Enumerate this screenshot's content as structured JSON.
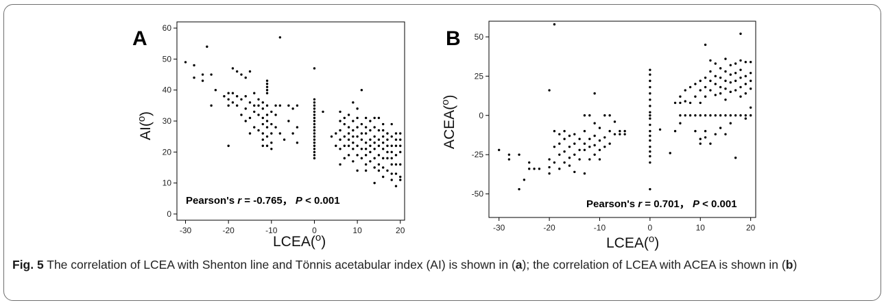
{
  "caption": {
    "label": "Fig. 5",
    "seg1": " The correlation of LCEA with Shenton line and Tönnis acetabular index (AI) is shown in (",
    "ref_a": "a",
    "seg2": "); the correlation of LCEA with ACEA is shown in (",
    "ref_b": "b",
    "seg3": ")"
  },
  "chart_data": [
    {
      "type": "scatter",
      "panel": "A",
      "xlabel": "LCEA(",
      "xlabel_sup": "o",
      "xlabel_end": ")",
      "ylabel": "AI(",
      "ylabel_sup": "o",
      "ylabel_end": ")",
      "xlim": [
        -32,
        21
      ],
      "ylim": [
        -2,
        62
      ],
      "xticks": [
        -30,
        -20,
        -10,
        0,
        10,
        20
      ],
      "yticks": [
        0,
        10,
        20,
        30,
        40,
        50,
        60
      ],
      "grid": false,
      "annotation": {
        "prefix": "Pearson's ",
        "r_sym": "r",
        "r_text": " = -0.765， ",
        "p_sym": "P",
        "p_text": " < 0.001"
      },
      "points": [
        [
          -30,
          49
        ],
        [
          -28,
          48
        ],
        [
          -28,
          44
        ],
        [
          -26,
          45
        ],
        [
          -26,
          43
        ],
        [
          -25,
          54
        ],
        [
          -24,
          45
        ],
        [
          -24,
          35
        ],
        [
          -23,
          40
        ],
        [
          -21,
          38
        ],
        [
          -20,
          39
        ],
        [
          -20,
          37
        ],
        [
          -20,
          35
        ],
        [
          -20,
          22
        ],
        [
          -19,
          47
        ],
        [
          -19,
          39
        ],
        [
          -19,
          36
        ],
        [
          -18,
          46
        ],
        [
          -18,
          38
        ],
        [
          -18,
          35
        ],
        [
          -17,
          45
        ],
        [
          -17,
          37
        ],
        [
          -17,
          32
        ],
        [
          -16,
          44
        ],
        [
          -16,
          38
        ],
        [
          -16,
          34
        ],
        [
          -16,
          30
        ],
        [
          -15,
          46
        ],
        [
          -15,
          36
        ],
        [
          -15,
          31
        ],
        [
          -15,
          26
        ],
        [
          -14,
          39
        ],
        [
          -14,
          35
        ],
        [
          -14,
          33
        ],
        [
          -14,
          28
        ],
        [
          -13,
          37
        ],
        [
          -13,
          35
        ],
        [
          -13,
          32
        ],
        [
          -13,
          27
        ],
        [
          -12,
          36
        ],
        [
          -12,
          34
        ],
        [
          -12,
          31
        ],
        [
          -12,
          29
        ],
        [
          -12,
          26
        ],
        [
          -12,
          24
        ],
        [
          -12,
          22
        ],
        [
          -11,
          43
        ],
        [
          -11,
          42
        ],
        [
          -11,
          41
        ],
        [
          -11,
          40
        ],
        [
          -11,
          39
        ],
        [
          -11,
          35
        ],
        [
          -11,
          32
        ],
        [
          -11,
          30
        ],
        [
          -11,
          28
        ],
        [
          -11,
          25
        ],
        [
          -11,
          22
        ],
        [
          -10,
          33
        ],
        [
          -10,
          29
        ],
        [
          -10,
          26
        ],
        [
          -10,
          23
        ],
        [
          -10,
          21
        ],
        [
          -9,
          35
        ],
        [
          -9,
          32
        ],
        [
          -9,
          28
        ],
        [
          -8,
          57
        ],
        [
          -8,
          35
        ],
        [
          -8,
          26
        ],
        [
          -7,
          24
        ],
        [
          -6,
          35
        ],
        [
          -6,
          30
        ],
        [
          -5,
          34
        ],
        [
          -5,
          26
        ],
        [
          -4,
          35
        ],
        [
          -4,
          28
        ],
        [
          -4,
          23
        ],
        [
          0,
          47
        ],
        [
          0,
          37
        ],
        [
          0,
          36
        ],
        [
          0,
          35
        ],
        [
          0,
          34
        ],
        [
          0,
          33
        ],
        [
          0,
          32
        ],
        [
          0,
          31
        ],
        [
          0,
          30
        ],
        [
          0,
          29
        ],
        [
          0,
          28
        ],
        [
          0,
          27
        ],
        [
          0,
          26
        ],
        [
          0,
          25
        ],
        [
          0,
          24
        ],
        [
          0,
          23
        ],
        [
          0,
          22
        ],
        [
          0,
          21
        ],
        [
          0,
          20
        ],
        [
          0,
          19
        ],
        [
          0,
          18
        ],
        [
          2,
          33
        ],
        [
          4,
          25
        ],
        [
          5,
          26
        ],
        [
          5,
          22
        ],
        [
          6,
          33
        ],
        [
          6,
          30
        ],
        [
          6,
          27
        ],
        [
          6,
          24
        ],
        [
          6,
          21
        ],
        [
          6,
          16
        ],
        [
          7,
          31
        ],
        [
          7,
          29
        ],
        [
          7,
          25
        ],
        [
          7,
          22
        ],
        [
          7,
          18
        ],
        [
          8,
          32
        ],
        [
          8,
          28
        ],
        [
          8,
          26
        ],
        [
          8,
          24
        ],
        [
          8,
          22
        ],
        [
          8,
          19
        ],
        [
          9,
          36
        ],
        [
          9,
          30
        ],
        [
          9,
          27
        ],
        [
          9,
          25
        ],
        [
          9,
          23
        ],
        [
          9,
          21
        ],
        [
          9,
          17
        ],
        [
          10,
          34
        ],
        [
          10,
          31
        ],
        [
          10,
          28
        ],
        [
          10,
          25
        ],
        [
          10,
          22
        ],
        [
          10,
          19
        ],
        [
          10,
          14
        ],
        [
          11,
          40
        ],
        [
          11,
          29
        ],
        [
          11,
          26
        ],
        [
          11,
          24
        ],
        [
          11,
          21
        ],
        [
          11,
          18
        ],
        [
          12,
          31
        ],
        [
          12,
          28
        ],
        [
          12,
          26
        ],
        [
          12,
          23
        ],
        [
          12,
          21
        ],
        [
          12,
          19
        ],
        [
          12,
          16
        ],
        [
          12,
          14
        ],
        [
          13,
          30
        ],
        [
          13,
          27
        ],
        [
          13,
          24
        ],
        [
          13,
          22
        ],
        [
          13,
          20
        ],
        [
          13,
          17
        ],
        [
          14,
          31
        ],
        [
          14,
          28
        ],
        [
          14,
          25
        ],
        [
          14,
          23
        ],
        [
          14,
          21
        ],
        [
          14,
          18
        ],
        [
          14,
          15
        ],
        [
          14,
          10
        ],
        [
          15,
          31
        ],
        [
          15,
          27
        ],
        [
          15,
          24
        ],
        [
          15,
          22
        ],
        [
          15,
          19
        ],
        [
          15,
          16
        ],
        [
          15,
          14
        ],
        [
          16,
          29
        ],
        [
          16,
          27
        ],
        [
          16,
          25
        ],
        [
          16,
          23
        ],
        [
          16,
          21
        ],
        [
          16,
          18
        ],
        [
          16,
          15
        ],
        [
          16,
          12
        ],
        [
          17,
          26
        ],
        [
          17,
          24
        ],
        [
          17,
          22
        ],
        [
          17,
          20
        ],
        [
          17,
          18
        ],
        [
          17,
          14
        ],
        [
          18,
          29
        ],
        [
          18,
          25
        ],
        [
          18,
          22
        ],
        [
          18,
          20
        ],
        [
          18,
          18
        ],
        [
          18,
          16
        ],
        [
          18,
          13
        ],
        [
          18,
          11
        ],
        [
          19,
          26
        ],
        [
          19,
          24
        ],
        [
          19,
          22
        ],
        [
          19,
          19
        ],
        [
          19,
          16
        ],
        [
          19,
          13
        ],
        [
          19,
          9
        ],
        [
          20,
          26
        ],
        [
          20,
          24
        ],
        [
          20,
          22
        ],
        [
          20,
          20
        ],
        [
          20,
          16
        ],
        [
          20,
          12
        ],
        [
          20,
          11
        ]
      ]
    },
    {
      "type": "scatter",
      "panel": "B",
      "xlabel": "LCEA(",
      "xlabel_sup": "o",
      "xlabel_end": ")",
      "ylabel": "ACEA(",
      "ylabel_sup": "o",
      "ylabel_end": ")",
      "xlim": [
        -32,
        21
      ],
      "ylim": [
        -65,
        60
      ],
      "xticks": [
        -30,
        -20,
        -10,
        0,
        10,
        20
      ],
      "yticks": [
        -50,
        -25,
        0,
        25,
        50
      ],
      "grid": false,
      "annotation": {
        "prefix": "Pearson's ",
        "r_sym": "r",
        "r_text": " = 0.701， ",
        "p_sym": "P",
        "p_text": " < 0.001"
      },
      "points": [
        [
          -30,
          -22
        ],
        [
          -28,
          -25
        ],
        [
          -28,
          -28
        ],
        [
          -26,
          -25
        ],
        [
          -26,
          -47
        ],
        [
          -25,
          -41
        ],
        [
          -24,
          -30
        ],
        [
          -24,
          -34
        ],
        [
          -23,
          -34
        ],
        [
          -22,
          -34
        ],
        [
          -20,
          -28
        ],
        [
          -20,
          -33
        ],
        [
          -20,
          -37
        ],
        [
          -20,
          16
        ],
        [
          -19,
          58
        ],
        [
          -19,
          -10
        ],
        [
          -19,
          -20
        ],
        [
          -19,
          -30
        ],
        [
          -18,
          -12
        ],
        [
          -18,
          -18
        ],
        [
          -18,
          -25
        ],
        [
          -18,
          -34
        ],
        [
          -17,
          -10
        ],
        [
          -17,
          -15
        ],
        [
          -17,
          -23
        ],
        [
          -17,
          -30
        ],
        [
          -16,
          -13
        ],
        [
          -16,
          -20
        ],
        [
          -16,
          -27
        ],
        [
          -16,
          -32
        ],
        [
          -15,
          -12
        ],
        [
          -15,
          -18
        ],
        [
          -15,
          -25
        ],
        [
          -15,
          -36
        ],
        [
          -14,
          -15
        ],
        [
          -14,
          -22
        ],
        [
          -14,
          -28
        ],
        [
          -13,
          0
        ],
        [
          -13,
          -10
        ],
        [
          -13,
          -18
        ],
        [
          -13,
          -22
        ],
        [
          -13,
          -37
        ],
        [
          -12,
          0
        ],
        [
          -12,
          -15
        ],
        [
          -12,
          -20
        ],
        [
          -12,
          -28
        ],
        [
          -11,
          14
        ],
        [
          -11,
          -5
        ],
        [
          -11,
          -13
        ],
        [
          -11,
          -19
        ],
        [
          -11,
          -25
        ],
        [
          -10,
          -8
        ],
        [
          -10,
          -16
        ],
        [
          -10,
          -22
        ],
        [
          -10,
          -28
        ],
        [
          -9,
          0
        ],
        [
          -9,
          -14
        ],
        [
          -9,
          -20
        ],
        [
          -8,
          0
        ],
        [
          -8,
          -10
        ],
        [
          -8,
          -18
        ],
        [
          -7,
          -4
        ],
        [
          -7,
          -12
        ],
        [
          -6,
          -10
        ],
        [
          -6,
          -12
        ],
        [
          -5,
          -10
        ],
        [
          -5,
          -12
        ],
        [
          0,
          29
        ],
        [
          0,
          26
        ],
        [
          0,
          22
        ],
        [
          0,
          18
        ],
        [
          0,
          14
        ],
        [
          0,
          10
        ],
        [
          0,
          6
        ],
        [
          0,
          2
        ],
        [
          0,
          0
        ],
        [
          0,
          -2
        ],
        [
          0,
          -6
        ],
        [
          0,
          -10
        ],
        [
          0,
          -13
        ],
        [
          0,
          -16
        ],
        [
          0,
          -20
        ],
        [
          0,
          -23
        ],
        [
          0,
          -26
        ],
        [
          0,
          -30
        ],
        [
          0,
          -47
        ],
        [
          2,
          -9
        ],
        [
          4,
          -24
        ],
        [
          5,
          -10
        ],
        [
          5,
          8
        ],
        [
          6,
          12
        ],
        [
          6,
          8
        ],
        [
          6,
          0
        ],
        [
          6,
          -5
        ],
        [
          7,
          16
        ],
        [
          7,
          9
        ],
        [
          7,
          0
        ],
        [
          8,
          18
        ],
        [
          8,
          8
        ],
        [
          8,
          0
        ],
        [
          9,
          20
        ],
        [
          9,
          12
        ],
        [
          9,
          0
        ],
        [
          9,
          -10
        ],
        [
          10,
          22
        ],
        [
          10,
          16
        ],
        [
          10,
          8
        ],
        [
          10,
          0
        ],
        [
          10,
          -15
        ],
        [
          10,
          -18
        ],
        [
          11,
          45
        ],
        [
          11,
          24
        ],
        [
          11,
          18
        ],
        [
          11,
          12
        ],
        [
          11,
          0
        ],
        [
          11,
          -10
        ],
        [
          11,
          -14
        ],
        [
          12,
          35
        ],
        [
          12,
          28
        ],
        [
          12,
          22
        ],
        [
          12,
          16
        ],
        [
          12,
          0
        ],
        [
          12,
          -18
        ],
        [
          13,
          33
        ],
        [
          13,
          25
        ],
        [
          13,
          20
        ],
        [
          13,
          13
        ],
        [
          13,
          0
        ],
        [
          13,
          -12
        ],
        [
          14,
          30
        ],
        [
          14,
          24
        ],
        [
          14,
          18
        ],
        [
          14,
          14
        ],
        [
          14,
          0
        ],
        [
          14,
          -8
        ],
        [
          15,
          36
        ],
        [
          15,
          28
        ],
        [
          15,
          22
        ],
        [
          15,
          17
        ],
        [
          15,
          10
        ],
        [
          15,
          0
        ],
        [
          15,
          -12
        ],
        [
          16,
          32
        ],
        [
          16,
          26
        ],
        [
          16,
          21
        ],
        [
          16,
          15
        ],
        [
          16,
          0
        ],
        [
          16,
          -5
        ],
        [
          17,
          33
        ],
        [
          17,
          27
        ],
        [
          17,
          22
        ],
        [
          17,
          16
        ],
        [
          17,
          0
        ],
        [
          17,
          -27
        ],
        [
          18,
          52
        ],
        [
          18,
          35
        ],
        [
          18,
          29
        ],
        [
          18,
          24
        ],
        [
          18,
          18
        ],
        [
          18,
          12
        ],
        [
          18,
          0
        ],
        [
          19,
          34
        ],
        [
          19,
          25
        ],
        [
          19,
          20
        ],
        [
          19,
          14
        ],
        [
          19,
          0
        ],
        [
          19,
          -2
        ],
        [
          20,
          34
        ],
        [
          20,
          27
        ],
        [
          20,
          22
        ],
        [
          20,
          17
        ],
        [
          20,
          5
        ],
        [
          20,
          0
        ]
      ]
    }
  ]
}
